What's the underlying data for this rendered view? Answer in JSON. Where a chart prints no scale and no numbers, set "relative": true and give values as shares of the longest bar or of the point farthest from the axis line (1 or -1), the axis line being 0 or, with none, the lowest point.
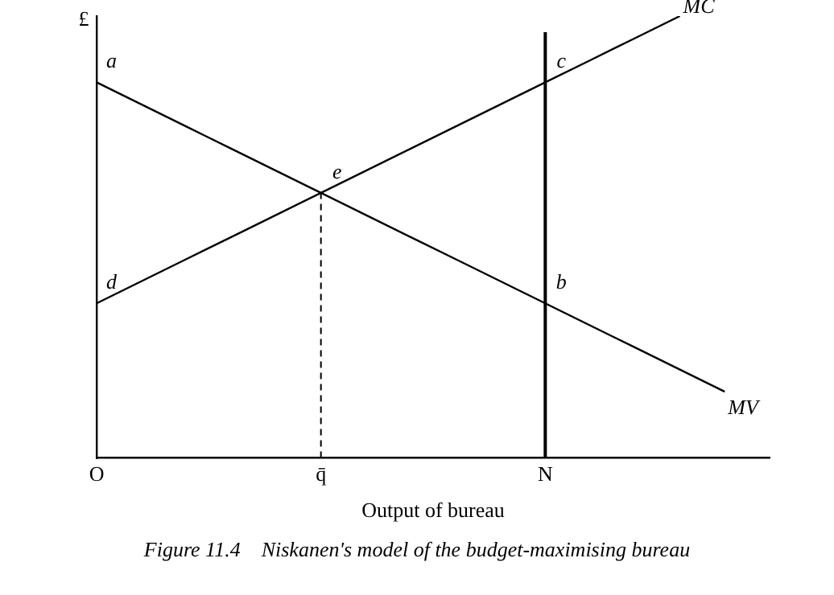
{
  "chart_data": {
    "type": "line",
    "relative": true,
    "ylabel": "£",
    "xlabel": "Output of bureau",
    "categories": [
      "O",
      null,
      null,
      null,
      null,
      "q̄",
      null,
      null,
      null,
      null,
      "N",
      null,
      null,
      null,
      null,
      null
    ],
    "series": [
      {
        "name": "MV",
        "color": "#000000",
        "values": [
          0.85,
          0.8,
          0.75,
          0.7,
          0.65,
          0.6,
          0.55,
          0.5,
          0.45,
          0.4,
          0.35,
          0.3,
          0.25,
          0.2,
          0.15,
          null
        ]
      },
      {
        "name": "MC",
        "color": "#000000",
        "values": [
          0.35,
          0.4,
          0.45,
          0.5,
          0.55,
          0.6,
          0.65,
          0.7,
          0.75,
          0.8,
          0.85,
          0.9,
          0.95,
          1.0,
          null,
          null
        ]
      }
    ],
    "ref_lines": [
      {
        "axis": "x",
        "value": "q̄",
        "color": "#000000",
        "line_style": "dashed"
      },
      {
        "axis": "x",
        "value": "N",
        "color": "#000000",
        "line_style": "solid"
      }
    ],
    "annotations": [
      {
        "text": "a",
        "x": "O",
        "y": 0.85
      },
      {
        "text": "d",
        "x": "O",
        "y": 0.35
      },
      {
        "text": "e",
        "x": "q̄",
        "y": 0.6
      },
      {
        "text": "b",
        "x": "N",
        "y": 0.35
      },
      {
        "text": "c",
        "x": "N",
        "y": 0.85
      },
      "Figure 11.4    Niskanen's model of the budget-maximising bureau"
    ],
    "grid": false,
    "legend": false,
    "marker": "none",
    "line_style": "solid"
  }
}
